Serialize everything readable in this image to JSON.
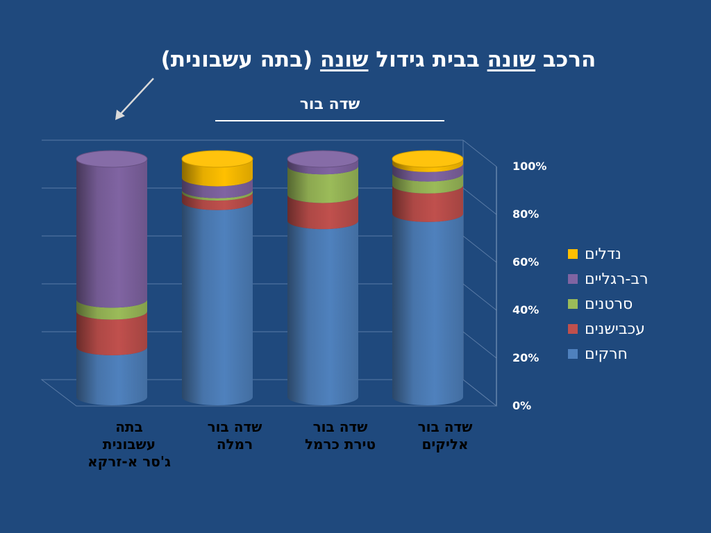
{
  "title": {
    "part1": "הרכב ",
    "part2": "שונה",
    "part3": " בבית גידול ",
    "part4": "שונה",
    "part5": " (בתה עשבונית)"
  },
  "subtitle": "שדה בור",
  "chart_data": {
    "type": "bar",
    "stacked": true,
    "percent": true,
    "style": "3d-cylinder",
    "categories": [
      "בתה עשבונית ג'סר א-זרקא",
      "שדה בור רמלה",
      "שדה בור טירת כרמל",
      "שדה בור אליקים"
    ],
    "category_lines": [
      [
        "בתה",
        "עשבונית",
        "ג'סר א-זרקא"
      ],
      [
        "שדה בור",
        "רמלה"
      ],
      [
        "שדה בור",
        "טירת כרמל"
      ],
      [
        "שדה בור",
        "אליקים"
      ]
    ],
    "series": [
      {
        "name": "חרקים",
        "color": "#4f81bd",
        "values": [
          21,
          82,
          74,
          77
        ]
      },
      {
        "name": "עכבישנים",
        "color": "#c0504d",
        "values": [
          15,
          4,
          11,
          12
        ]
      },
      {
        "name": "סרטנים",
        "color": "#9bbb59",
        "values": [
          5,
          1,
          12,
          5
        ]
      },
      {
        "name": "רב-רגליים",
        "color": "#8064a2",
        "values": [
          59,
          5,
          3,
          4
        ]
      },
      {
        "name": "נדלים",
        "color": "#ffc000",
        "values": [
          0,
          8,
          0,
          2
        ]
      }
    ],
    "y_ticks": [
      "0%",
      "20%",
      "40%",
      "60%",
      "80%",
      "100%"
    ],
    "ylim": [
      0,
      100
    ],
    "legend_position": "right",
    "grid": true,
    "annotation": "arrow pointing to the first column"
  }
}
